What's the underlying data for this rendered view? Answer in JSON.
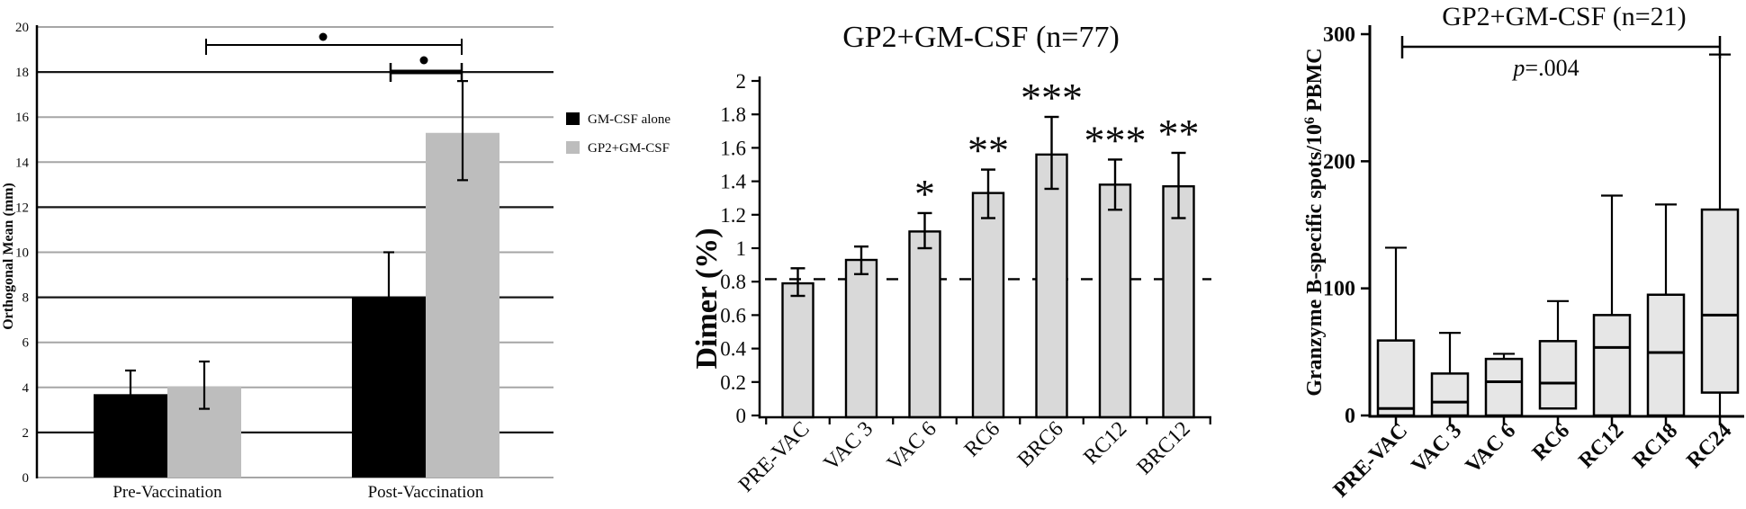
{
  "figure": {
    "background": "#ffffff",
    "text_color": "#0a0a0a",
    "chart_data": [
      {
        "id": "orthogonal-mean",
        "type": "bar",
        "title": "",
        "xlabel": "",
        "ylabel": "Orthogonal Mean (mm)",
        "ylim": [
          0,
          20
        ],
        "ytick_step": 2,
        "grid": "horizontal",
        "dark_gridlines": [
          2,
          8,
          12,
          18
        ],
        "gridline_color": "#a6a6a6",
        "dark_gridline_color": "#161616",
        "categories": [
          "Pre-Vaccination",
          "Post-Vaccination"
        ],
        "series": [
          {
            "name": "GM-CSF alone",
            "color": "#000000",
            "values": [
              3.7,
              8.0
            ],
            "err_low": [
              null,
              null
            ],
            "err_high": [
              4.75,
              10.0
            ]
          },
          {
            "name": "GP2+GM-CSF",
            "color": "#bdbdbd",
            "values": [
              4.05,
              15.3
            ],
            "err_low": [
              3.05,
              13.2
            ],
            "err_high": [
              5.15,
              17.6
            ]
          }
        ],
        "legend": {
          "position": "right-outside",
          "entries": [
            "GM-CSF alone",
            "GP2+GM-CSF"
          ]
        },
        "significance": [
          {
            "symbol": "dot",
            "between": [
              "Pre-Vaccination GP2+GM-CSF",
              "Post-Vaccination GP2+GM-CSF"
            ],
            "thick": false
          },
          {
            "symbol": "dot",
            "between": [
              "Post-Vaccination GM-CSF alone",
              "Post-Vaccination GP2+GM-CSF"
            ],
            "thick": true
          }
        ]
      },
      {
        "id": "dimer-percent",
        "type": "bar",
        "title": "GP2+GM-CSF (n=77)",
        "xlabel": "",
        "ylabel": "Dimer (%)",
        "ylim": [
          0,
          2
        ],
        "ytick_step": 0.2,
        "grid": "off",
        "bar_color": "#d9d9d9",
        "bar_outline": "#000000",
        "categories": [
          "PRE-VAC",
          "VAC 3",
          "VAC 6",
          "RC6",
          "BRC6",
          "RC12",
          "BRC12"
        ],
        "values": [
          0.79,
          0.93,
          1.1,
          1.33,
          1.56,
          1.38,
          1.37
        ],
        "err_low": [
          0.715,
          0.845,
          1.0,
          1.18,
          1.355,
          1.23,
          1.18
        ],
        "err_high": [
          0.88,
          1.01,
          1.21,
          1.47,
          1.785,
          1.53,
          1.57
        ],
        "sig_labels": [
          "",
          "",
          "*",
          "**",
          "***",
          "***",
          "**"
        ],
        "baseline_ref": {
          "value": 0.815,
          "style": "dashed"
        }
      },
      {
        "id": "granzyme-b-elispot",
        "type": "box",
        "title": "GP2+GM-CSF (n=21)",
        "xlabel": "",
        "ylabel_parts": [
          "Granzyme B-specific spots/10",
          "6",
          " PBMC"
        ],
        "ylim": [
          0,
          300
        ],
        "ytick_step": 100,
        "grid": "off",
        "box_color": "#e6e6e6",
        "box_outline": "#000000",
        "categories": [
          "PRE-VAC",
          "VAC 3",
          "VAC 6",
          "RC6",
          "RC12",
          "RC18",
          "RC24"
        ],
        "boxes": [
          {
            "low": null,
            "q1": 0,
            "median": 5.5,
            "q3": 59,
            "high": 132
          },
          {
            "low": null,
            "q1": 0,
            "median": 10.5,
            "q3": 33,
            "high": 65
          },
          {
            "low": null,
            "q1": 0,
            "median": 26.5,
            "q3": 44.5,
            "high": 48.5
          },
          {
            "low": null,
            "q1": 5.5,
            "median": 25.5,
            "q3": 58.5,
            "high": 90
          },
          {
            "low": null,
            "q1": 0,
            "median": 53.5,
            "q3": 79,
            "high": 173
          },
          {
            "low": null,
            "q1": 0,
            "median": 49.5,
            "q3": 95,
            "high": 166
          },
          {
            "low": 0,
            "q1": 18,
            "median": 79,
            "q3": 162,
            "high": 284
          }
        ],
        "significance": {
          "between": [
            "PRE-VAC",
            "RC24"
          ],
          "p_prefix": "p",
          "p_value": "=.004"
        }
      }
    ]
  }
}
